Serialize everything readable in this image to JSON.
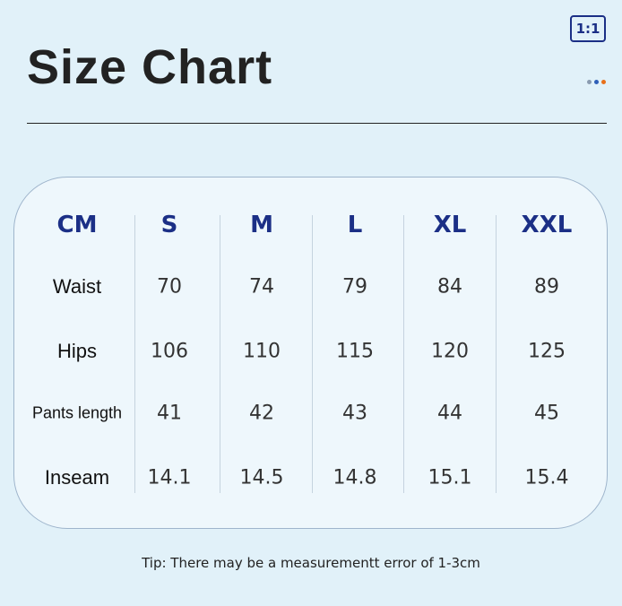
{
  "header": {
    "title": "Size Chart",
    "badge": "1:1"
  },
  "table": {
    "columns": [
      "CM",
      "S",
      "M",
      "L",
      "XL",
      "XXL"
    ],
    "rows": [
      [
        "Waist",
        70,
        74,
        79,
        84,
        89
      ],
      [
        "Hips",
        106,
        110,
        115,
        120,
        125
      ],
      [
        "Pants length",
        41,
        42,
        43,
        44,
        45
      ],
      [
        "Inseam",
        14.1,
        14.5,
        14.8,
        15.1,
        15.4
      ]
    ]
  },
  "footer": {
    "tip": "Tip:  There may be a measurementt error of 1-3cm"
  }
}
